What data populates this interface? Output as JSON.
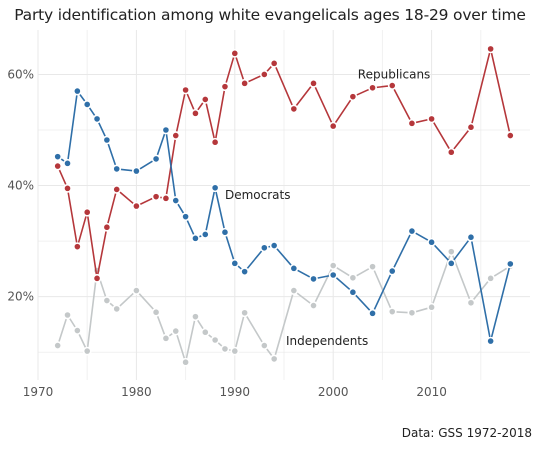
{
  "chart_data": {
    "type": "line",
    "title": "Party identification among white evangelicals ages 18-29 over time",
    "caption": "Data: GSS 1972-2018",
    "xlabel": "",
    "ylabel": "",
    "xlim": [
      1970,
      2020
    ],
    "ylim": [
      5,
      68
    ],
    "x_ticks": [
      1970,
      1980,
      1990,
      2000,
      2010
    ],
    "y_ticks": [
      20,
      40,
      60
    ],
    "y_tick_labels": [
      "20%",
      "40%",
      "60%"
    ],
    "grid": true,
    "legend": "none (direct labels)",
    "series": [
      {
        "name": "Republicans",
        "color": "#b5373b",
        "x": [
          1972,
          1973,
          1974,
          1975,
          1976,
          1977,
          1978,
          1980,
          1982,
          1983,
          1984,
          1985,
          1986,
          1987,
          1988,
          1989,
          1990,
          1991,
          1993,
          1994,
          1996,
          1998,
          2000,
          2002,
          2004,
          2006,
          2008,
          2010,
          2012,
          2014,
          2016,
          2018
        ],
        "values": [
          43.5,
          39.5,
          29,
          35.2,
          23.3,
          32.5,
          39.3,
          36.3,
          38,
          37.7,
          49,
          57.2,
          53,
          55.5,
          47.8,
          57.8,
          63.8,
          58.4,
          60,
          62,
          53.8,
          58.4,
          50.7,
          56,
          57.6,
          58,
          51.2,
          52,
          46,
          50.5,
          64.6,
          49
        ]
      },
      {
        "name": "Democrats",
        "color": "#2f6fa8",
        "x": [
          1972,
          1973,
          1974,
          1975,
          1976,
          1977,
          1978,
          1980,
          1982,
          1983,
          1984,
          1985,
          1986,
          1987,
          1988,
          1989,
          1990,
          1991,
          1993,
          1994,
          1996,
          1998,
          2000,
          2002,
          2004,
          2006,
          2008,
          2010,
          2012,
          2014,
          2016,
          2018
        ],
        "values": [
          45.2,
          44,
          57,
          54.6,
          52,
          48.2,
          43,
          42.6,
          44.8,
          50,
          37.3,
          34.4,
          30.5,
          31.2,
          39.6,
          31.6,
          26,
          24.5,
          28.8,
          29.2,
          25.1,
          23.2,
          23.9,
          20.8,
          17,
          24.6,
          31.8,
          29.8,
          26,
          30.7,
          12,
          25.9
        ]
      },
      {
        "name": "Independents",
        "color": "#c4c8c9",
        "x": [
          1972,
          1973,
          1974,
          1975,
          1976,
          1977,
          1978,
          1980,
          1982,
          1983,
          1984,
          1985,
          1986,
          1987,
          1988,
          1989,
          1990,
          1991,
          1993,
          1994,
          1996,
          1998,
          2000,
          2002,
          2004,
          2006,
          2008,
          2010,
          2012,
          2014,
          2016,
          2018
        ],
        "values": [
          11.2,
          16.7,
          13.9,
          10.2,
          24.7,
          19.3,
          17.8,
          21.1,
          17.2,
          12.5,
          13.8,
          8.2,
          16.4,
          13.6,
          12.2,
          10.6,
          10.2,
          17.1,
          11.2,
          8.8,
          21.1,
          18.4,
          25.6,
          23.4,
          25.4,
          17.3,
          17.1,
          18.1,
          28.1,
          18.9,
          23.3,
          25.5
        ]
      }
    ],
    "annotations": [
      {
        "text": "Republicans",
        "x": 2002.5,
        "y": 59.3
      },
      {
        "text": "Democrats",
        "x": 1989.0,
        "y": 37.6
      },
      {
        "text": "Independents",
        "x": 1995.2,
        "y": 11.3
      }
    ]
  }
}
